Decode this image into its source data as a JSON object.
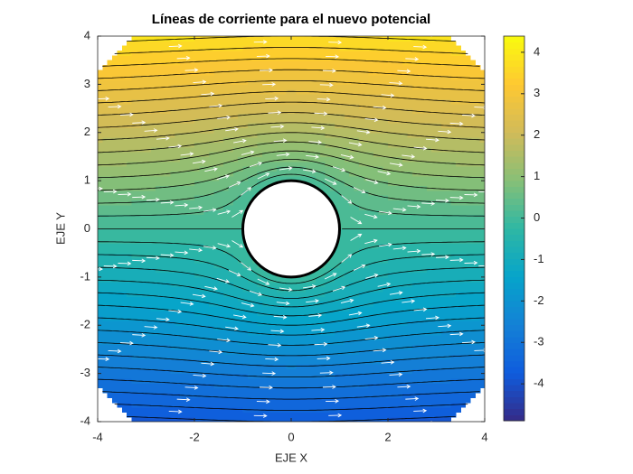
{
  "chart_data": {
    "type": "streamfunction",
    "title": "Líneas de corriente para el nuevo potencial",
    "xlabel": "EJE X",
    "ylabel": "EJE Y",
    "xlim": [
      -4,
      4
    ],
    "ylim": [
      -4,
      4
    ],
    "xticks": [
      -4,
      -2,
      0,
      2,
      4
    ],
    "yticks": [
      -4,
      -3,
      -2,
      -1,
      0,
      1,
      2,
      3,
      4
    ],
    "circle_radius": 1,
    "colorbar": {
      "lim": [
        -4.89,
        4.39
      ],
      "ticks": [
        -4,
        -3,
        -2,
        -1,
        0,
        1,
        2,
        3,
        4
      ]
    }
  }
}
